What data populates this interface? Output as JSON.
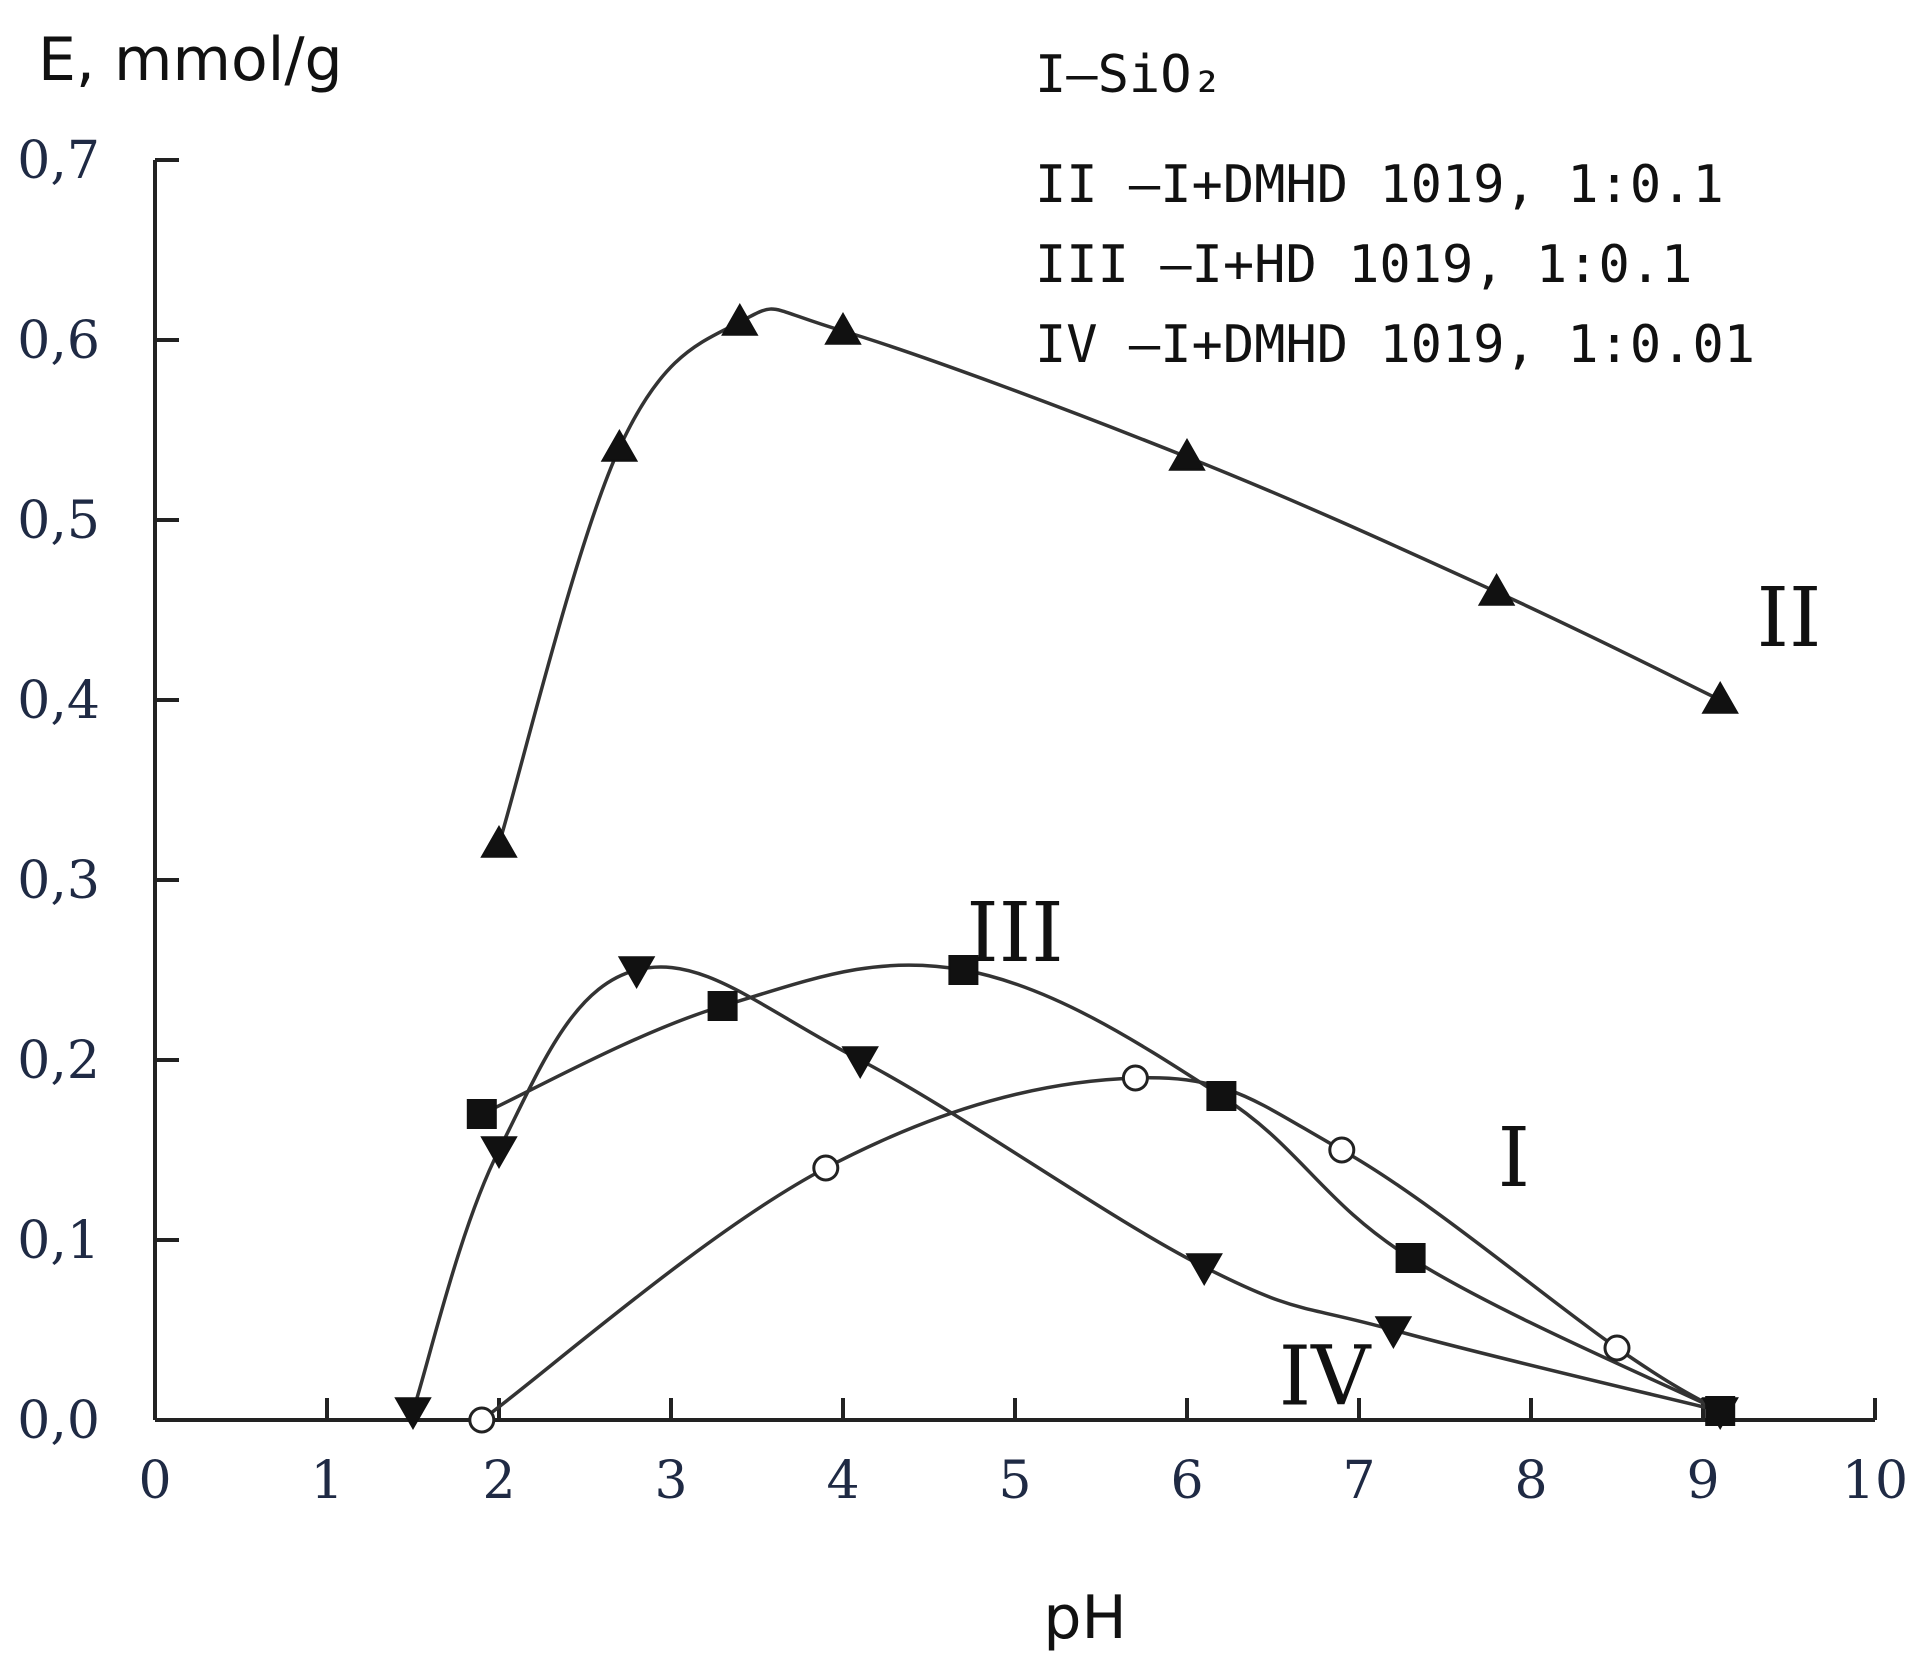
{
  "chart_data": {
    "type": "line",
    "ylabel": "E, mmol/g",
    "xlabel": "pH",
    "xlim": [
      0,
      10
    ],
    "ylim": [
      0,
      0.7
    ],
    "x_ticks": [
      "0",
      "1",
      "2",
      "3",
      "4",
      "5",
      "6",
      "7",
      "8",
      "9",
      "10"
    ],
    "y_ticks": [
      "0,0",
      "0,1",
      "0,2",
      "0,3",
      "0,4",
      "0,5",
      "0,6",
      "0,7"
    ],
    "grid": false,
    "legend": {
      "placement": "top-right",
      "entries": [
        "I–SiO₂",
        "II –I+DMHD 1019, 1:0.1",
        "III –I+HD 1019, 1:0.1",
        "IV –I+DMHD 1019, 1:0.01"
      ]
    },
    "series": [
      {
        "name": "I",
        "marker": "open-circle",
        "x": [
          1.9,
          3.9,
          5.7,
          6.9,
          8.5,
          9.1
        ],
        "y": [
          0.0,
          0.14,
          0.19,
          0.15,
          0.04,
          0.005
        ]
      },
      {
        "name": "II",
        "marker": "filled-triangle-up",
        "x": [
          2.0,
          2.7,
          3.4,
          4.0,
          6.0,
          7.8,
          9.1
        ],
        "y": [
          0.32,
          0.54,
          0.61,
          0.605,
          0.535,
          0.46,
          0.4
        ]
      },
      {
        "name": "III",
        "marker": "filled-square",
        "x": [
          1.9,
          3.3,
          4.7,
          6.2,
          7.3,
          9.1
        ],
        "y": [
          0.17,
          0.23,
          0.25,
          0.18,
          0.09,
          0.005
        ]
      },
      {
        "name": "IV",
        "marker": "filled-triangle-down",
        "x": [
          1.5,
          2.0,
          2.8,
          4.1,
          6.1,
          7.2,
          9.1
        ],
        "y": [
          0.005,
          0.15,
          0.25,
          0.2,
          0.085,
          0.05,
          0.005
        ]
      }
    ],
    "curve_labels": [
      {
        "text": "I",
        "x": 7.9,
        "y": 0.13
      },
      {
        "text": "II",
        "x": 9.5,
        "y": 0.43
      },
      {
        "text": "III",
        "x": 5.0,
        "y": 0.255
      },
      {
        "text": "IV",
        "x": 6.8,
        "y": 0.0085
      }
    ]
  }
}
